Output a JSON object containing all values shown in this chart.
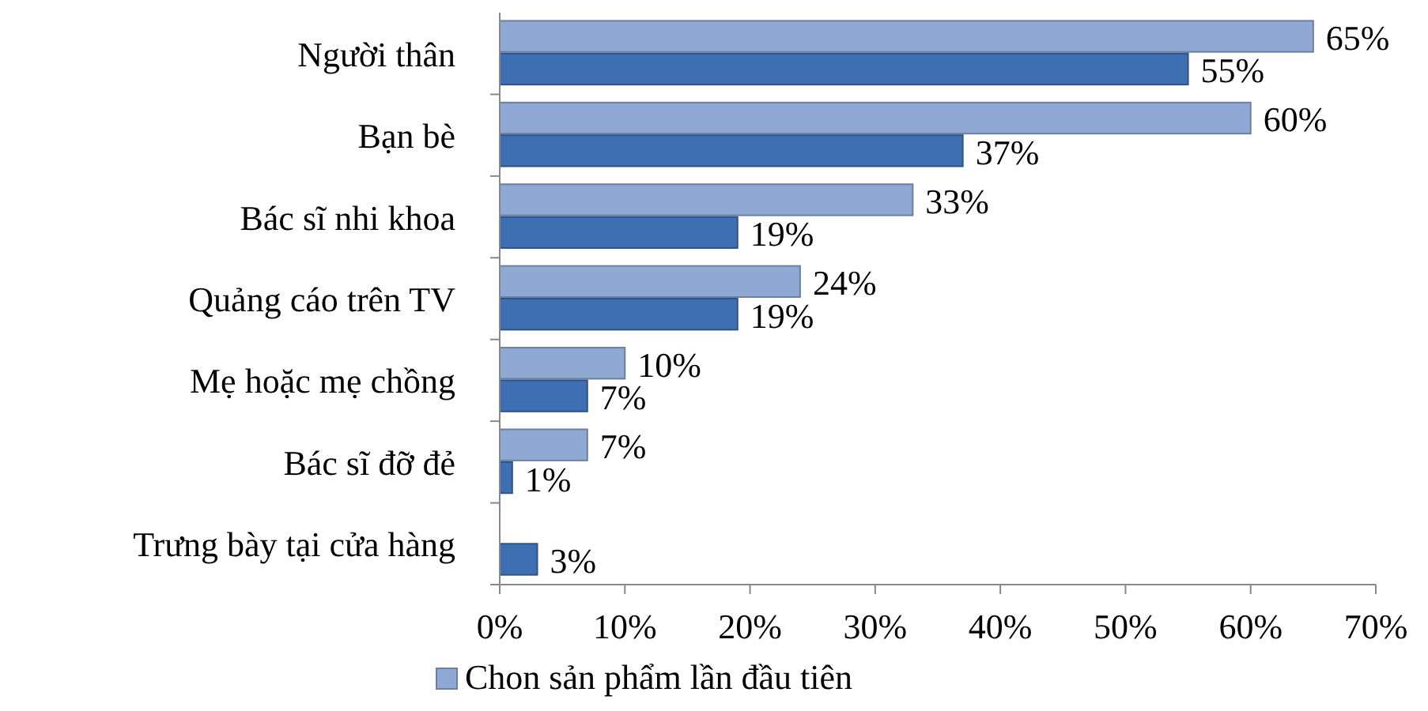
{
  "chart_data": {
    "type": "bar",
    "orientation": "horizontal",
    "categories": [
      "Người thân",
      "Bạn bè",
      "Bác sĩ nhi khoa",
      "Quảng cáo trên TV",
      "Mẹ hoặc mẹ chồng",
      "Bác sĩ đỡ đẻ",
      "Trưng bày tại cửa hàng"
    ],
    "series": [
      {
        "name": "Chon sản phẩm lần đầu tiên",
        "color": "#8fa9d4",
        "values": [
          65,
          60,
          33,
          24,
          10,
          7,
          null
        ],
        "value_labels": [
          "65%",
          "60%",
          "33%",
          "24%",
          "10%",
          "7%",
          null
        ]
      },
      {
        "color": "#3e6fb3",
        "values": [
          55,
          37,
          19,
          19,
          7,
          1,
          3
        ],
        "value_labels": [
          "55%",
          "37%",
          "19%",
          "19%",
          "7%",
          "1%",
          "3%"
        ]
      }
    ],
    "xlim": [
      0,
      70
    ],
    "xticks": [
      {
        "value": 0,
        "label": "0%"
      },
      {
        "value": 10,
        "label": "10%"
      },
      {
        "value": 20,
        "label": "20%"
      },
      {
        "value": 30,
        "label": "30%"
      },
      {
        "value": 40,
        "label": "40%"
      },
      {
        "value": 50,
        "label": "50%"
      },
      {
        "value": 60,
        "label": "60%"
      },
      {
        "value": 70,
        "label": "70%"
      }
    ],
    "grid": false,
    "legend": "bottom"
  }
}
